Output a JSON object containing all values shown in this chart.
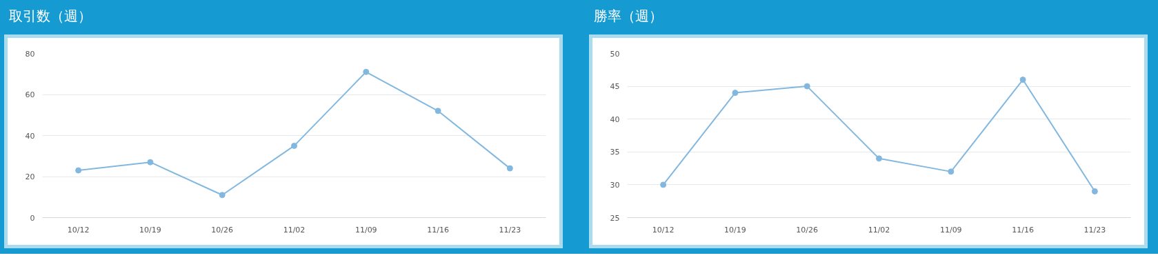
{
  "chart_data": [
    {
      "type": "line",
      "title": "取引数（週）",
      "categories": [
        "10/12",
        "10/19",
        "10/26",
        "11/02",
        "11/09",
        "11/16",
        "11/23"
      ],
      "series": [
        {
          "color": "#82b8e0",
          "values": [
            23,
            27,
            11,
            35,
            71,
            52,
            24
          ]
        }
      ],
      "ylim": [
        0,
        80
      ],
      "yticks": [
        0,
        20,
        40,
        60,
        80
      ],
      "grid": "y",
      "marker": "circle",
      "line_style": "solid"
    },
    {
      "type": "line",
      "title": "勝率（週）",
      "categories": [
        "10/12",
        "10/19",
        "10/26",
        "11/02",
        "11/09",
        "11/16",
        "11/23"
      ],
      "series": [
        {
          "color": "#82b8e0",
          "values": [
            30,
            44,
            45,
            34,
            32,
            46,
            29
          ]
        }
      ],
      "ylim": [
        25,
        50
      ],
      "yticks": [
        25,
        30,
        35,
        40,
        45,
        50
      ],
      "grid": "y",
      "marker": "circle",
      "line_style": "solid"
    }
  ]
}
